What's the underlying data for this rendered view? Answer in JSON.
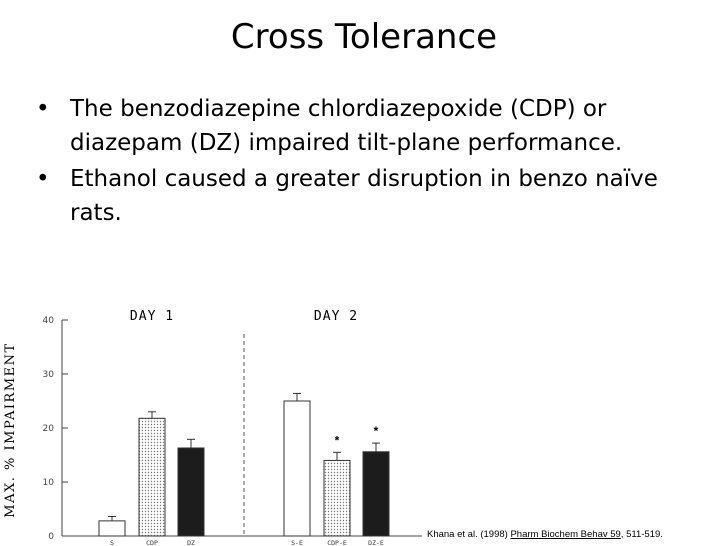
{
  "slide": {
    "title": "Cross Tolerance",
    "bullets": [
      "The benzodiazepine chlordiazepoxide (CDP) or diazepam (DZ) impaired tilt-plane performance.",
      "Ethanol caused a greater disruption in benzo naïve rats."
    ],
    "citation": {
      "authors": "Khana et al. (1998)",
      "journal": "Pharm Biochem Behav 59",
      "pages": ",  511-519."
    }
  },
  "chart_data": {
    "type": "bar",
    "ylabel": "MAX. % IMPAIRMENT",
    "ylim": [
      0,
      40
    ],
    "yticks": [
      0,
      10,
      20,
      30,
      40
    ],
    "groups": [
      {
        "label": "DAY 1",
        "bars": [
          {
            "category": "S",
            "value": 2.8,
            "error": 0.8,
            "fill": "white",
            "marker": ""
          },
          {
            "category": "CDP",
            "value": 21.8,
            "error": 1.2,
            "fill": "dotted",
            "marker": ""
          },
          {
            "category": "DZ",
            "value": 16.3,
            "error": 1.6,
            "fill": "black",
            "marker": ""
          }
        ]
      },
      {
        "label": "DAY 2",
        "bars": [
          {
            "category": "S-E",
            "value": 25.0,
            "error": 1.4,
            "fill": "white",
            "marker": ""
          },
          {
            "category": "CDP-E",
            "value": 14.0,
            "error": 1.5,
            "fill": "dotted",
            "marker": "*"
          },
          {
            "category": "DZ-E",
            "value": 15.6,
            "error": 1.6,
            "fill": "black",
            "marker": "*"
          }
        ]
      }
    ],
    "legend": "none",
    "grid": false
  }
}
